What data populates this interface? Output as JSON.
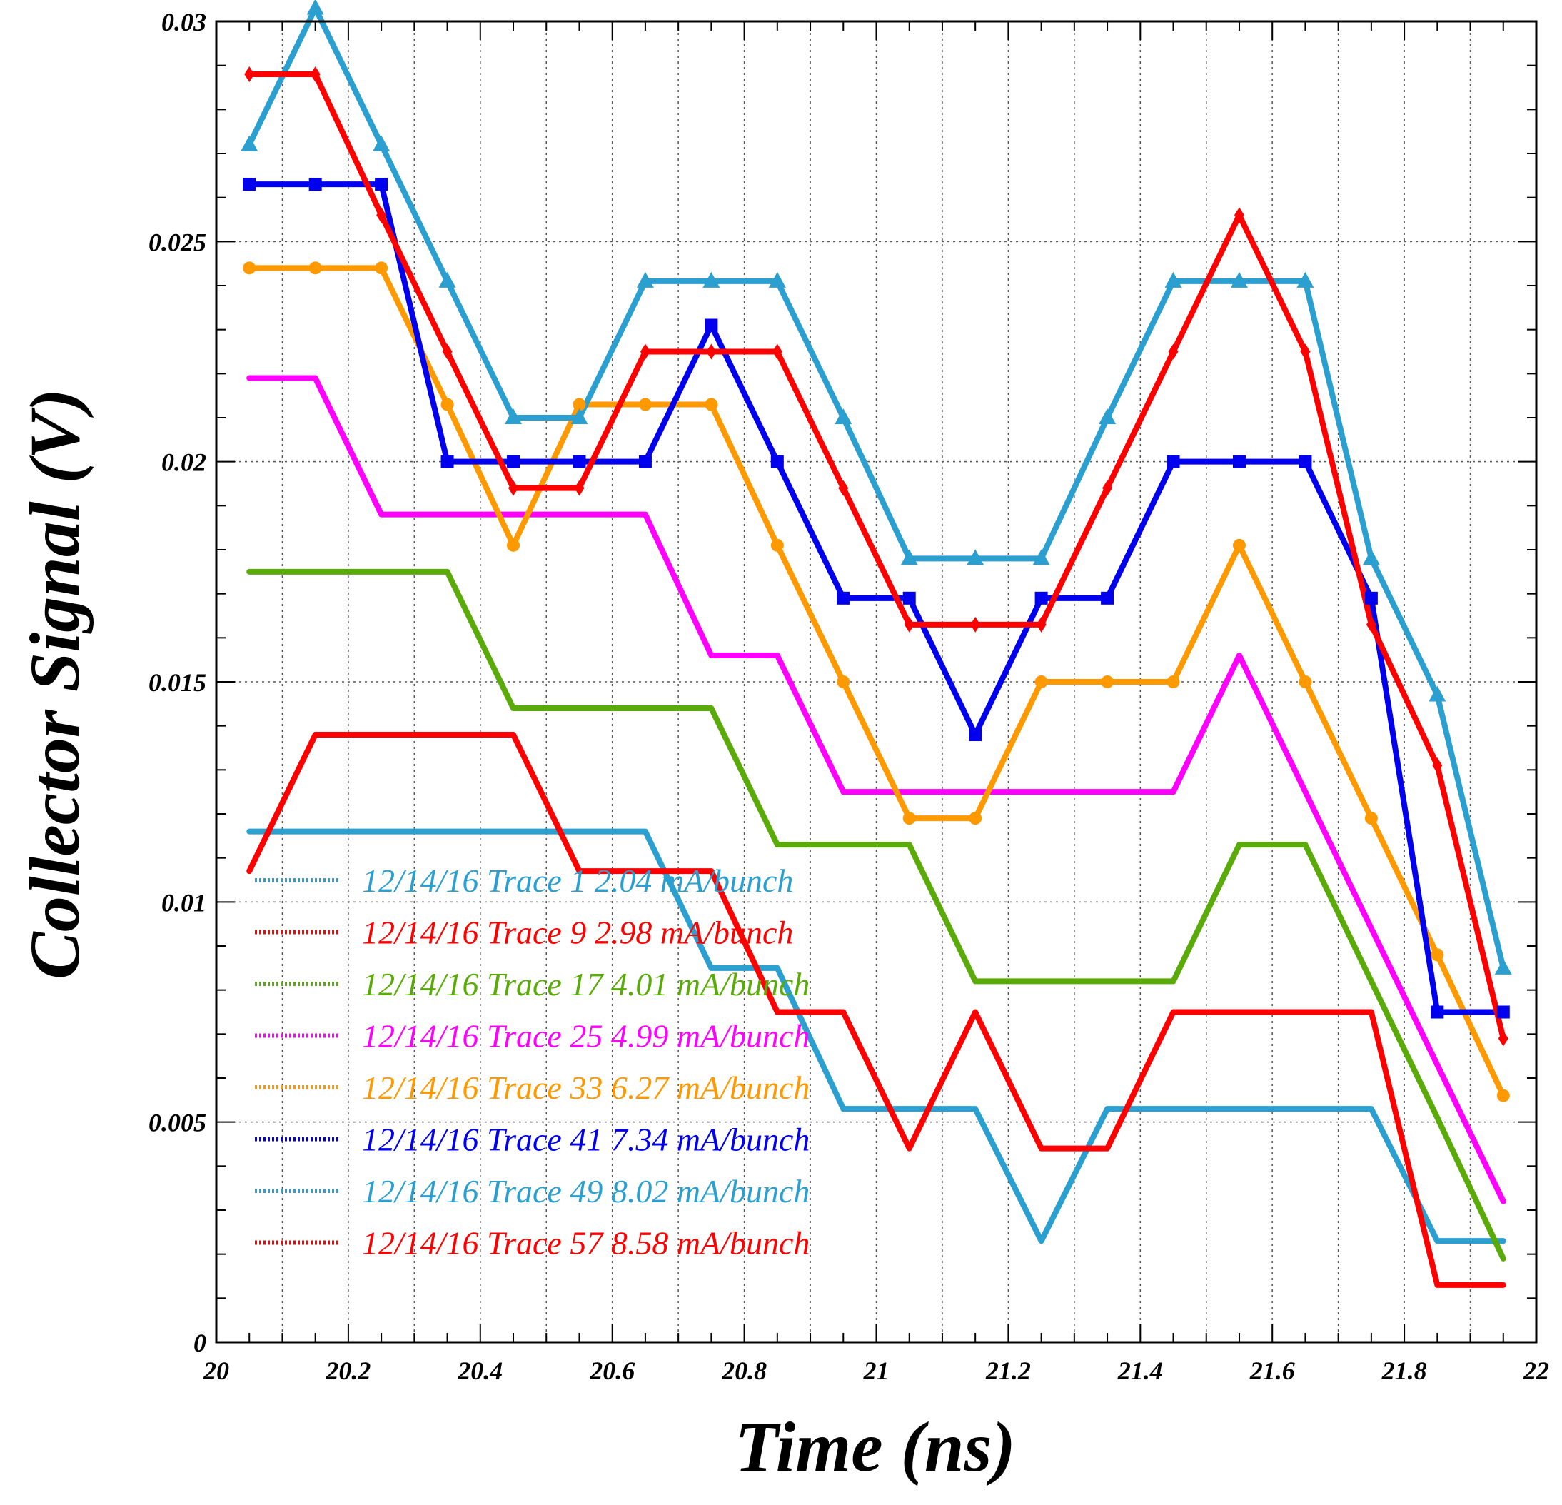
{
  "chart_data": {
    "type": "line",
    "xlabel": "Time (ns)",
    "ylabel": "Collector Signal (V)",
    "xlim": [
      20,
      22
    ],
    "ylim": [
      0,
      0.03
    ],
    "x_ticks": [
      20,
      20.2,
      20.4,
      20.6,
      20.8,
      21,
      21.2,
      21.4,
      21.6,
      21.8,
      22
    ],
    "x_tick_labels": [
      "20",
      "20.2",
      "20.4",
      "20.6",
      "20.8",
      "21",
      "21.2",
      "21.4",
      "21.6",
      "21.8",
      "22"
    ],
    "y_ticks": [
      0,
      0.005,
      0.01,
      0.015,
      0.02,
      0.025,
      0.03
    ],
    "y_tick_labels": [
      "0",
      "0.005",
      "0.01",
      "0.015",
      "0.02",
      "0.025",
      "0.03"
    ],
    "grid": true,
    "legend_position": "bottom-left",
    "x": [
      20.05,
      20.15,
      20.25,
      20.35,
      20.45,
      20.55,
      20.65,
      20.75,
      20.85,
      20.95,
      21.05,
      21.15,
      21.25,
      21.35,
      21.45,
      21.55,
      21.65,
      21.75,
      21.85,
      21.95
    ],
    "series": [
      {
        "name": "12/14/16 Trace 1  2.04 mA/bunch",
        "color": "#2a9fd0",
        "marker": "none",
        "values": [
          0.0116,
          0.0116,
          0.0116,
          0.0116,
          0.0116,
          0.0116,
          0.0116,
          0.0085,
          0.0085,
          0.0053,
          0.0053,
          0.0053,
          0.0023,
          0.0053,
          0.0053,
          0.0053,
          0.0053,
          0.0053,
          0.0023,
          0.0023
        ]
      },
      {
        "name": "12/14/16 Trace 9  2.98 mA/bunch",
        "color": "#ff0000",
        "marker": "none",
        "values": [
          0.0107,
          0.0138,
          0.0138,
          0.0138,
          0.0138,
          0.0107,
          0.0107,
          0.0107,
          0.0075,
          0.0075,
          0.0044,
          0.0075,
          0.0044,
          0.0044,
          0.0075,
          0.0075,
          0.0075,
          0.0075,
          0.0013,
          0.0013
        ]
      },
      {
        "name": "12/14/16 Trace 17  4.01 mA/bunch",
        "color": "#5aaa0a",
        "marker": "none",
        "values": [
          0.0175,
          0.0175,
          0.0175,
          0.0175,
          0.0144,
          0.0144,
          0.0144,
          0.0144,
          0.0113,
          0.0113,
          0.0113,
          0.0082,
          0.0082,
          0.0082,
          0.0082,
          0.0113,
          0.0113,
          0.0082,
          0.0051,
          0.0019
        ]
      },
      {
        "name": "12/14/16 Trace 25  4.99 mA/bunch",
        "color": "#ff00ff",
        "marker": "none",
        "values": [
          0.0219,
          0.0219,
          0.0188,
          0.0188,
          0.0188,
          0.0188,
          0.0188,
          0.0156,
          0.0156,
          0.0125,
          0.0125,
          0.0125,
          0.0125,
          0.0125,
          0.0125,
          0.0156,
          0.0125,
          0.0094,
          0.0063,
          0.0032
        ]
      },
      {
        "name": "12/14/16 Trace 33  6.27 mA/bunch",
        "color": "#ff9900",
        "marker": "circle",
        "values": [
          0.0244,
          0.0244,
          0.0244,
          0.0213,
          0.0181,
          0.0213,
          0.0213,
          0.0213,
          0.0181,
          0.015,
          0.0119,
          0.0119,
          0.015,
          0.015,
          0.015,
          0.0181,
          0.015,
          0.0119,
          0.0088,
          0.0056
        ]
      },
      {
        "name": "12/14/16 Trace 41  7.34 mA/bunch",
        "color": "#0000ee",
        "marker": "square",
        "values": [
          0.0263,
          0.0263,
          0.0263,
          0.02,
          0.02,
          0.02,
          0.02,
          0.0231,
          0.02,
          0.0169,
          0.0169,
          0.0138,
          0.0169,
          0.0169,
          0.02,
          0.02,
          0.02,
          0.0169,
          0.0075,
          0.0075
        ]
      },
      {
        "name": "12/14/16 Trace 49  8.02 mA/bunch",
        "color": "#2a9fd0",
        "marker": "triangle",
        "values": [
          0.0272,
          0.0303,
          0.0272,
          0.0241,
          0.021,
          0.021,
          0.0241,
          0.0241,
          0.0241,
          0.021,
          0.0178,
          0.0178,
          0.0178,
          0.021,
          0.0241,
          0.0241,
          0.0241,
          0.0178,
          0.0147,
          0.0085
        ]
      },
      {
        "name": "12/14/16 Trace 57  8.58 mA/bunch",
        "color": "#ff0000",
        "marker": "diamond",
        "values": [
          0.0288,
          0.0288,
          0.0256,
          0.0225,
          0.0194,
          0.0194,
          0.0225,
          0.0225,
          0.0225,
          0.0194,
          0.0163,
          0.0163,
          0.0163,
          0.0194,
          0.0225,
          0.0256,
          0.0225,
          0.0163,
          0.0131,
          0.0069
        ]
      }
    ]
  }
}
